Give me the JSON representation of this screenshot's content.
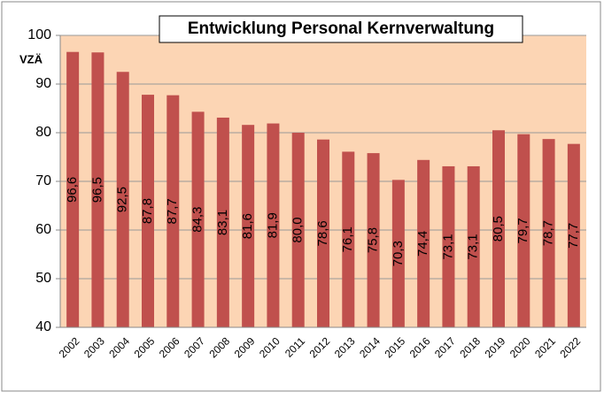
{
  "chart_data": {
    "type": "bar",
    "title": "Entwicklung Personal Kernverwaltung",
    "y_label": "VZÄ",
    "categories": [
      "2002",
      "2003",
      "2004",
      "2005",
      "2006",
      "2007",
      "2008",
      "2009",
      "2010",
      "2011",
      "2012",
      "2013",
      "2014",
      "2015",
      "2016",
      "2017",
      "2018",
      "2019",
      "2020",
      "2021",
      "2022"
    ],
    "values": [
      96.6,
      96.5,
      92.5,
      87.8,
      87.7,
      84.3,
      83.1,
      81.6,
      81.9,
      80.0,
      78.6,
      76.1,
      75.8,
      70.3,
      74.4,
      73.1,
      73.1,
      80.5,
      79.7,
      78.7,
      77.7
    ],
    "value_labels": [
      "96,6",
      "96,5",
      "92,5",
      "87,8",
      "87,7",
      "84,3",
      "83,1",
      "81,6",
      "81,9",
      "80,0",
      "78,6",
      "76,1",
      "75,8",
      "70,3",
      "74,4",
      "73,1",
      "73,1",
      "80,5",
      "79,7",
      "78,7",
      "77,7"
    ],
    "color": "#c0504d",
    "plot_background": "#fcd5b4",
    "ylim": [
      40,
      100
    ],
    "yticks": [
      40,
      50,
      60,
      70,
      80,
      90,
      100
    ],
    "grid": true
  }
}
